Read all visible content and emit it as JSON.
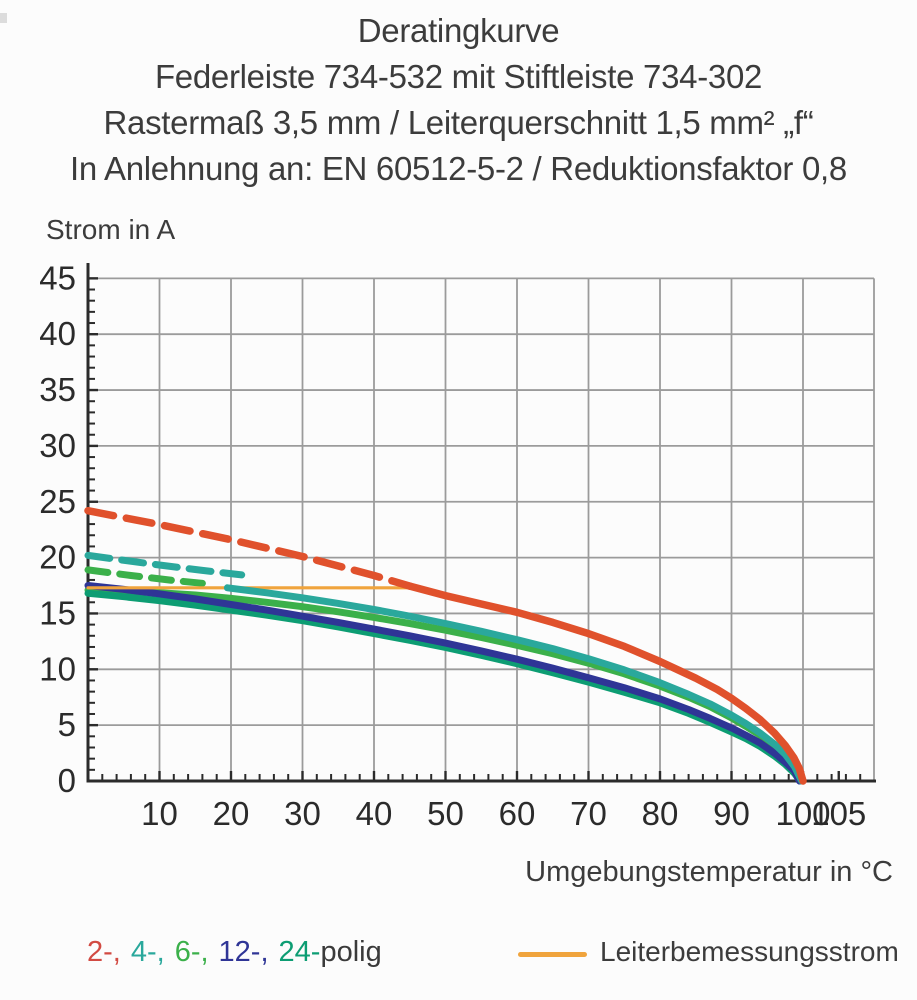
{
  "header": {
    "lines": [
      "Deratingkurve",
      "Federleiste 734-532 mit Stiftleiste 734-302",
      "Rastermaß 3,5 mm / Leiterquerschnitt 1,5 mm² „f“",
      "In Anlehnung an: EN 60512-5-2 / Reduktionsfaktor 0,8"
    ]
  },
  "chart_data": {
    "type": "line",
    "title": "Deratingkurve",
    "xlabel": "Umgebungstemperatur in °C",
    "ylabel": "Strom in A",
    "xlim": [
      0,
      110
    ],
    "ylim": [
      0,
      45
    ],
    "x_major_ticks": [
      10,
      20,
      30,
      40,
      50,
      60,
      70,
      80,
      90,
      100,
      105
    ],
    "y_major_ticks": [
      0,
      5,
      10,
      15,
      20,
      25,
      30,
      35,
      40,
      45
    ],
    "x_minor_step": 2,
    "y_minor_step": 1,
    "x_gridlines": [
      10,
      20,
      30,
      40,
      50,
      60,
      70,
      80,
      90,
      100
    ],
    "y_gridlines": [
      5,
      10,
      15,
      20,
      25,
      30,
      35,
      40,
      45
    ],
    "grid_color": "#9b9b9b",
    "axis_color": "#2b2b2b",
    "tick_label_color": "#2b2b2b",
    "legend_position": "bottom",
    "series": [
      {
        "name": "6-polig",
        "variant": "dashed",
        "color": "#3bb04a",
        "width": 7,
        "dash": "20 12",
        "points": [
          [
            0,
            18.9
          ],
          [
            6,
            18.4
          ],
          [
            12,
            17.95
          ],
          [
            16,
            17.7
          ]
        ]
      },
      {
        "name": "4-polig",
        "variant": "dashed",
        "color": "#2aa89c",
        "width": 7,
        "dash": "22 12",
        "points": [
          [
            0,
            20.2
          ],
          [
            8,
            19.5
          ],
          [
            16,
            18.85
          ],
          [
            21.5,
            18.45
          ]
        ]
      },
      {
        "name": "6-polig",
        "variant": "solid",
        "color": "#3bb04a",
        "width": 7,
        "dash": null,
        "points": [
          [
            0,
            17.1
          ],
          [
            5,
            17.0
          ],
          [
            10,
            16.85
          ],
          [
            15,
            16.65
          ],
          [
            20,
            16.35
          ],
          [
            25,
            16.0
          ],
          [
            30,
            15.6
          ],
          [
            35,
            15.15
          ],
          [
            40,
            14.65
          ],
          [
            45,
            14.1
          ],
          [
            50,
            13.5
          ],
          [
            55,
            12.85
          ],
          [
            60,
            12.15
          ],
          [
            65,
            11.4
          ],
          [
            70,
            10.55
          ],
          [
            75,
            9.6
          ],
          [
            80,
            8.5
          ],
          [
            84,
            7.5
          ],
          [
            87,
            6.65
          ],
          [
            90,
            5.65
          ],
          [
            92,
            4.9
          ],
          [
            94,
            4.1
          ],
          [
            96,
            3.1
          ],
          [
            97.5,
            2.2
          ],
          [
            98.8,
            1.2
          ],
          [
            99.7,
            0
          ]
        ]
      },
      {
        "name": "24-polig",
        "variant": "solid",
        "color": "#0d9d73",
        "width": 7,
        "dash": null,
        "points": [
          [
            0,
            16.8
          ],
          [
            5,
            16.5
          ],
          [
            10,
            16.15
          ],
          [
            15,
            15.75
          ],
          [
            20,
            15.3
          ],
          [
            25,
            14.85
          ],
          [
            30,
            14.35
          ],
          [
            35,
            13.8
          ],
          [
            40,
            13.2
          ],
          [
            45,
            12.6
          ],
          [
            50,
            11.95
          ],
          [
            55,
            11.25
          ],
          [
            60,
            10.5
          ],
          [
            65,
            9.7
          ],
          [
            70,
            8.85
          ],
          [
            75,
            7.95
          ],
          [
            80,
            7.0
          ],
          [
            84,
            6.05
          ],
          [
            87,
            5.25
          ],
          [
            90,
            4.4
          ],
          [
            92,
            3.8
          ],
          [
            94,
            3.1
          ],
          [
            96,
            2.25
          ],
          [
            97.5,
            1.5
          ],
          [
            98.8,
            0.7
          ],
          [
            99.6,
            0
          ]
        ]
      },
      {
        "name": "12-polig",
        "variant": "solid",
        "color": "#2f3596",
        "width": 7,
        "dash": null,
        "points": [
          [
            0,
            17.5
          ],
          [
            5,
            17.15
          ],
          [
            10,
            16.75
          ],
          [
            15,
            16.3
          ],
          [
            20,
            15.8
          ],
          [
            25,
            15.3
          ],
          [
            30,
            14.75
          ],
          [
            35,
            14.2
          ],
          [
            40,
            13.6
          ],
          [
            45,
            13.0
          ],
          [
            50,
            12.35
          ],
          [
            55,
            11.65
          ],
          [
            60,
            10.9
          ],
          [
            65,
            10.1
          ],
          [
            70,
            9.25
          ],
          [
            75,
            8.35
          ],
          [
            80,
            7.35
          ],
          [
            84,
            6.4
          ],
          [
            87,
            5.6
          ],
          [
            90,
            4.75
          ],
          [
            92,
            4.1
          ],
          [
            94,
            3.4
          ],
          [
            96,
            2.5
          ],
          [
            97.5,
            1.7
          ],
          [
            98.8,
            0.9
          ],
          [
            99.5,
            0
          ]
        ]
      },
      {
        "name": "Leiterbemessungsstrom",
        "variant": "solid",
        "color": "#f0a43d",
        "width": 3.2,
        "dash": null,
        "points": [
          [
            0,
            17.3
          ],
          [
            45.3,
            17.3
          ]
        ]
      },
      {
        "name": "4-polig",
        "variant": "solid",
        "color": "#2aa89c",
        "width": 7,
        "dash": null,
        "points": [
          [
            19.5,
            17.3
          ],
          [
            25,
            16.85
          ],
          [
            30,
            16.4
          ],
          [
            35,
            15.9
          ],
          [
            40,
            15.35
          ],
          [
            45,
            14.75
          ],
          [
            50,
            14.1
          ],
          [
            55,
            13.4
          ],
          [
            60,
            12.65
          ],
          [
            65,
            11.85
          ],
          [
            70,
            10.95
          ],
          [
            75,
            9.95
          ],
          [
            80,
            8.8
          ],
          [
            84,
            7.75
          ],
          [
            87,
            6.9
          ],
          [
            90,
            5.9
          ],
          [
            92,
            5.15
          ],
          [
            94,
            4.3
          ],
          [
            96,
            3.3
          ],
          [
            97.5,
            2.4
          ],
          [
            98.8,
            1.3
          ],
          [
            99.8,
            0
          ]
        ]
      },
      {
        "name": "2-polig",
        "variant": "dashed",
        "color": "#e0512c",
        "width": 7.5,
        "dash": "26 13",
        "points": [
          [
            0,
            24.2
          ],
          [
            10,
            22.95
          ],
          [
            20,
            21.6
          ],
          [
            30,
            20.1
          ],
          [
            40,
            18.4
          ],
          [
            45,
            17.45
          ]
        ]
      },
      {
        "name": "2-polig",
        "variant": "solid",
        "color": "#e0512c",
        "width": 7.5,
        "dash": null,
        "points": [
          [
            45,
            17.45
          ],
          [
            50,
            16.6
          ],
          [
            55,
            15.85
          ],
          [
            60,
            15.1
          ],
          [
            65,
            14.2
          ],
          [
            70,
            13.2
          ],
          [
            75,
            12.05
          ],
          [
            80,
            10.7
          ],
          [
            85,
            9.2
          ],
          [
            88,
            8.2
          ],
          [
            90,
            7.4
          ],
          [
            92,
            6.5
          ],
          [
            94,
            5.5
          ],
          [
            96,
            4.3
          ],
          [
            97.5,
            3.2
          ],
          [
            98.7,
            2.1
          ],
          [
            99.5,
            1.1
          ],
          [
            100,
            0
          ]
        ]
      }
    ]
  },
  "legend": {
    "poles": [
      {
        "label": "2-,",
        "color": "#d24a42"
      },
      {
        "label": "4-,",
        "color": "#2aa89c"
      },
      {
        "label": "6-,",
        "color": "#3bb04a"
      },
      {
        "label": "12-,",
        "color": "#2f3596"
      },
      {
        "label": "24-",
        "color": "#0d9d73"
      },
      {
        "label": "polig",
        "color": "#3a3a3a"
      }
    ],
    "rated": {
      "label": "Leiterbemessungsstrom",
      "color": "#f0a43d"
    }
  }
}
